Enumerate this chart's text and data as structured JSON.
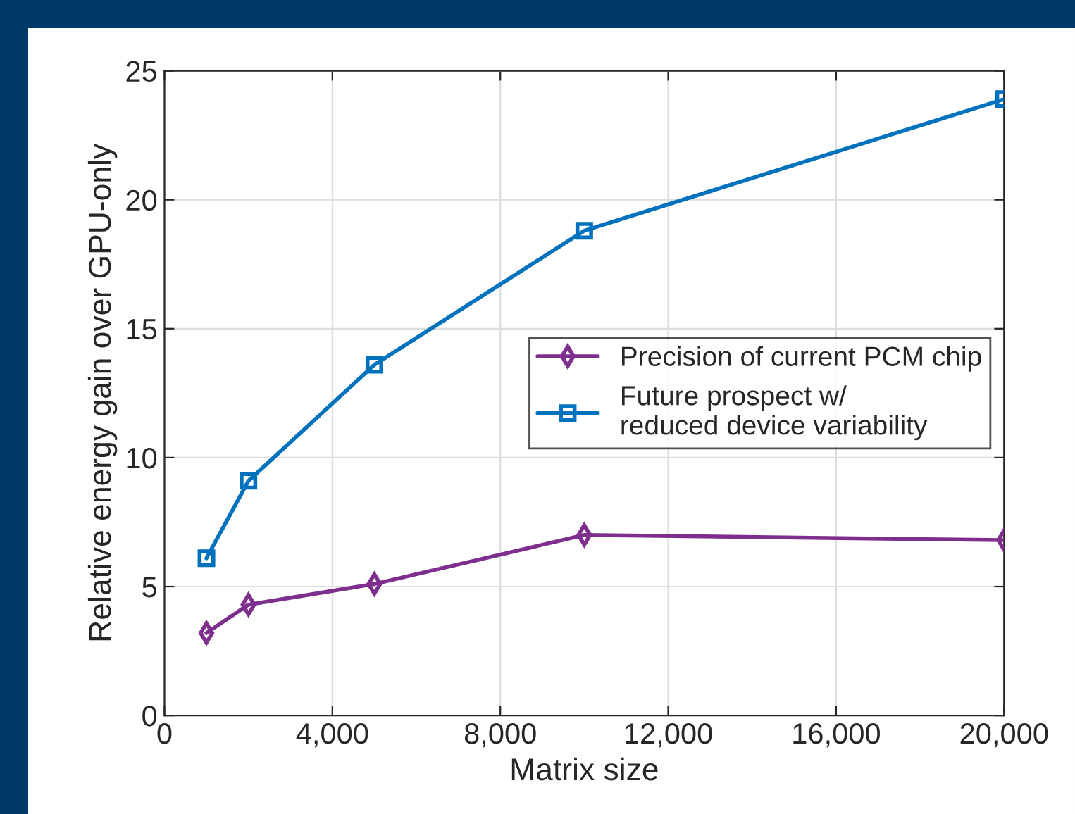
{
  "chart_data": {
    "type": "line",
    "xlabel": "Matrix size",
    "ylabel": "Relative energy gain over GPU-only",
    "x": [
      1000,
      2000,
      5000,
      10000,
      20000
    ],
    "series": [
      {
        "name": "Precision of current PCM chip",
        "color": "#7e2f8e",
        "marker": "diamond",
        "values": [
          3.2,
          4.3,
          5.1,
          7.0,
          6.8
        ]
      },
      {
        "name": "Future prospect w/\nreduced device variability",
        "color": "#0072bd",
        "marker": "square",
        "values": [
          6.1,
          9.1,
          13.6,
          18.8,
          23.9
        ]
      }
    ],
    "xlim": [
      0,
      20000
    ],
    "ylim": [
      0,
      25
    ],
    "xticks": [
      0,
      {
        "value": 4000,
        "label": "4,000"
      },
      {
        "value": 8000,
        "label": "8,000"
      },
      {
        "value": 12000,
        "label": "12,000"
      },
      {
        "value": 16000,
        "label": "16,000"
      },
      {
        "value": 20000,
        "label": "20,000"
      }
    ],
    "yticks": [
      0,
      5,
      10,
      15,
      20,
      25
    ],
    "grid": true,
    "legend": "right",
    "line_style": "solid"
  }
}
